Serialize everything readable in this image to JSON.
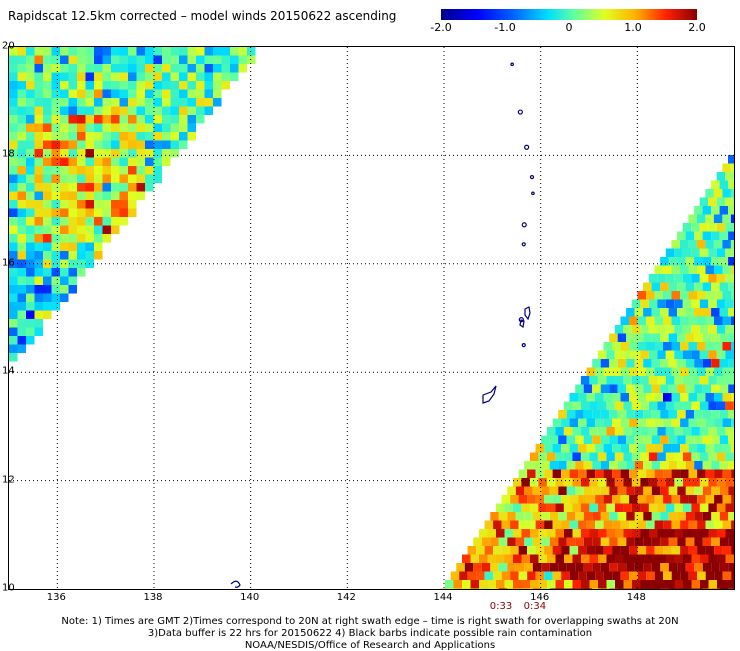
{
  "title": "Rapidscat 12.5km corrected – model winds 20150622 ascending",
  "colorbar": {
    "ticks": [
      {
        "label": "-2.0",
        "value": -2.0
      },
      {
        "label": "-1.0",
        "value": -1.0
      },
      {
        "label": "0",
        "value": 0
      },
      {
        "label": "1.0",
        "value": 1.0
      },
      {
        "label": "2.0",
        "value": 2.0
      }
    ],
    "range": [
      -2.0,
      2.0
    ],
    "colors": [
      "#00008a",
      "#0000ff",
      "#0060ff",
      "#00e0ff",
      "#60ffa0",
      "#e0ff20",
      "#ffb000",
      "#ff2000",
      "#8a0000"
    ]
  },
  "map": {
    "lon_range": [
      135,
      150
    ],
    "lat_range": [
      10,
      20
    ],
    "lat_labels": [
      {
        "value": 20,
        "label": "20"
      },
      {
        "value": 18,
        "label": "18"
      },
      {
        "value": 16,
        "label": "16"
      },
      {
        "value": 14,
        "label": "14"
      },
      {
        "value": 12,
        "label": "12"
      },
      {
        "value": 10,
        "label": "10"
      }
    ],
    "lon_labels": [
      {
        "value": 136,
        "label": "136"
      },
      {
        "value": 138,
        "label": "138"
      },
      {
        "value": 140,
        "label": "140"
      },
      {
        "value": 142,
        "label": "142"
      },
      {
        "value": 144,
        "label": "144"
      },
      {
        "value": 146,
        "label": "146"
      },
      {
        "value": 148,
        "label": "148"
      }
    ],
    "swath_times": [
      {
        "lon": 145.2,
        "label": "0:33"
      },
      {
        "lon": 145.9,
        "label": "0:34"
      }
    ],
    "gridline_color": "#000000",
    "coast_color": "#000080"
  },
  "notes": {
    "line1": "Note: 1) Times are GMT 2)Times correspond to 20N at right swath edge – time is right swath for overlapping swaths at 20N",
    "line2": "3)Data buffer is 22 hrs for 20150622 4) Black barbs indicate possible rain contamination",
    "line3": "NOAA/NESDIS/Office of Research and Applications"
  }
}
